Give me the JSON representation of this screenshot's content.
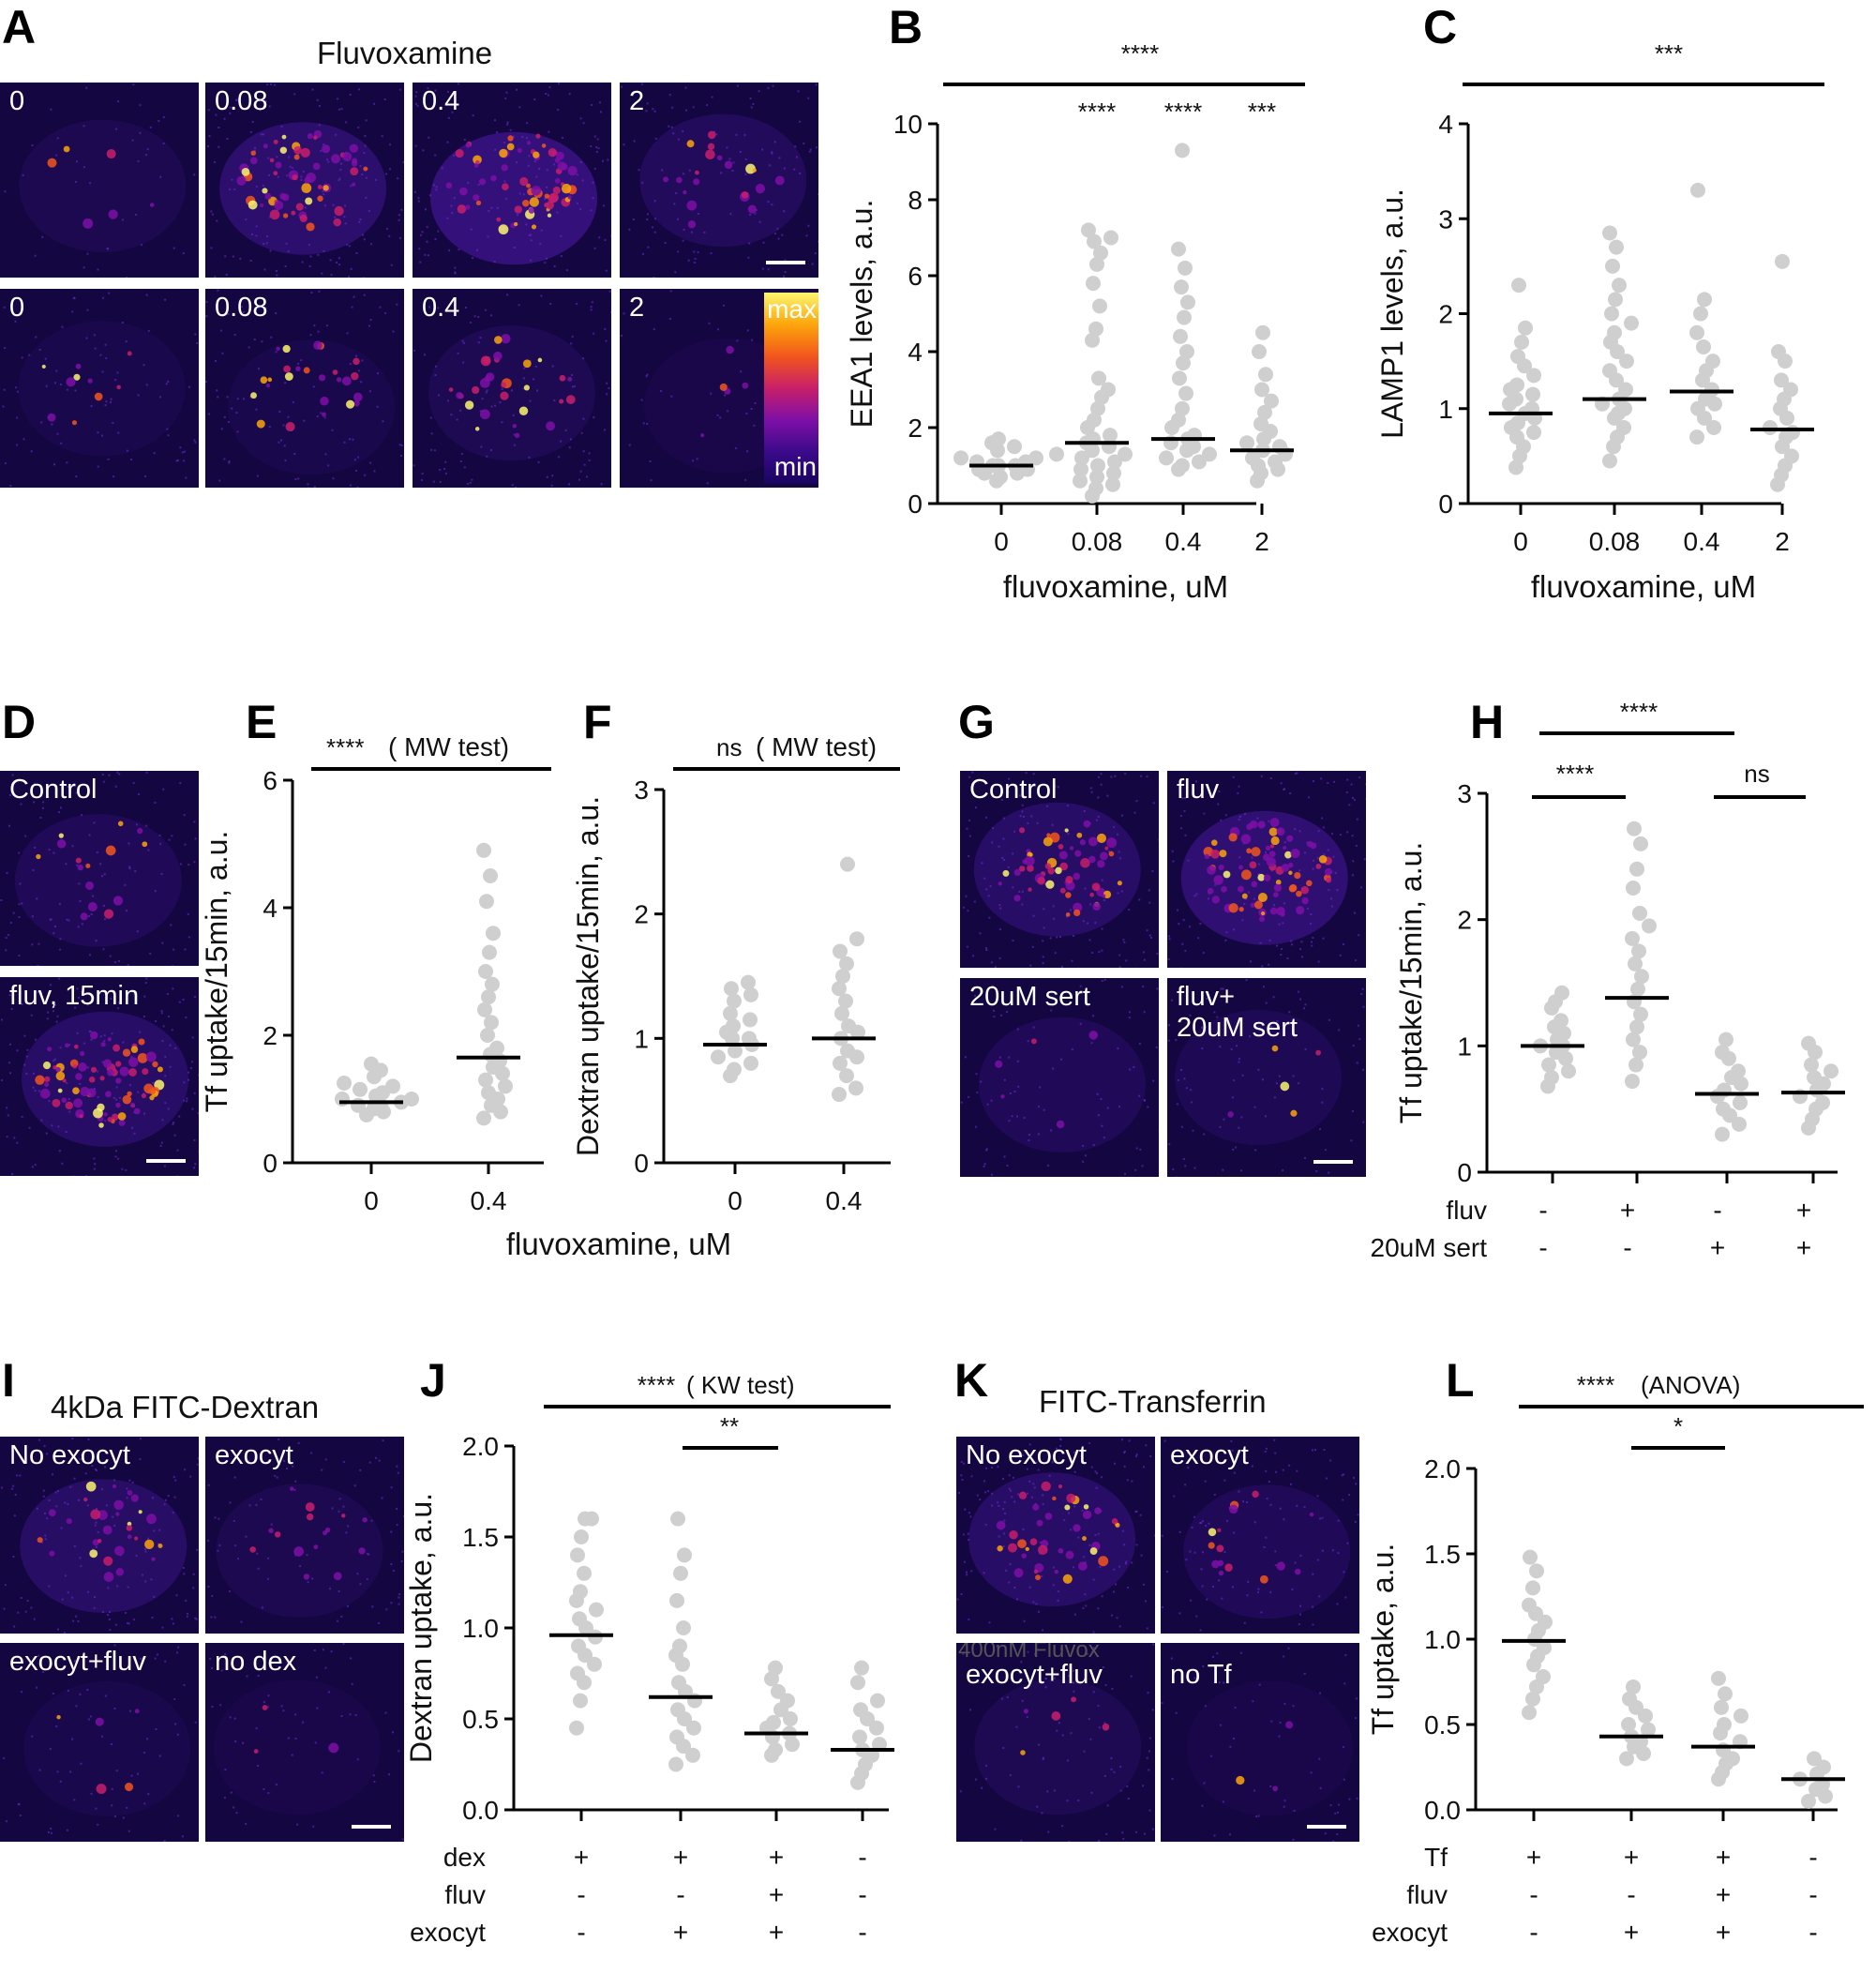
{
  "panels": {
    "A": {
      "letter": "A",
      "title": "Fluvoxamine",
      "row1_labels": [
        "0",
        "0.08",
        "0.4",
        "2"
      ],
      "row2_labels": [
        "0",
        "0.08",
        "0.4",
        "2"
      ],
      "lut_max": "max",
      "lut_min": "min"
    },
    "D": {
      "letter": "D",
      "labels": [
        "Control",
        "fluv, 15min"
      ]
    },
    "G": {
      "letter": "G",
      "labels": [
        "Control",
        "fluv",
        "20uM sert",
        "fluv+\n20uM sert"
      ]
    },
    "I": {
      "letter": "I",
      "title": "4kDa FITC-Dextran",
      "labels": [
        "No exocyt",
        "exocyt",
        "exocyt+fluv",
        "no dex"
      ]
    },
    "K": {
      "letter": "K",
      "title": "FITC-Transferrin",
      "labels": [
        "No exocyt",
        "exocyt",
        "exocyt+fluv",
        "no Tf"
      ],
      "overlay_text": "400nM Fluvox"
    }
  },
  "colors": {
    "dots": "#cfcfcf",
    "median": "#000000",
    "axis": "#000000",
    "lut": [
      "#0b0018",
      "#3a0a8a",
      "#7e0fa6",
      "#c81f6a",
      "#f2561d",
      "#fca50a",
      "#fcf66f"
    ]
  },
  "chart_data": [
    {
      "id": "B",
      "type": "scatter",
      "letter": "B",
      "ylabel": "EEA1 levels, a.u.",
      "xlabel": "fluvoxamine, uM",
      "categories": [
        "0",
        "0.08",
        "0.4",
        "2"
      ],
      "ylim": [
        0,
        10
      ],
      "yticks": [
        "0",
        "2",
        "4",
        "6",
        "8",
        "10"
      ],
      "medians": [
        1.0,
        1.6,
        1.7,
        1.4
      ],
      "points": [
        [
          0.6,
          0.7,
          0.8,
          0.8,
          0.9,
          0.9,
          1.0,
          1.0,
          1.0,
          1.1,
          1.1,
          1.2,
          1.2,
          1.3,
          1.4,
          1.5,
          1.6,
          1.7
        ],
        [
          0.2,
          0.4,
          0.5,
          0.6,
          0.7,
          0.8,
          0.9,
          1.0,
          1.1,
          1.2,
          1.3,
          1.4,
          1.5,
          1.6,
          1.7,
          1.8,
          2.0,
          2.2,
          2.5,
          2.8,
          3.0,
          3.3,
          4.3,
          4.6,
          5.2,
          5.8,
          6.3,
          6.6,
          6.9,
          7.0,
          7.2
        ],
        [
          0.9,
          1.0,
          1.1,
          1.2,
          1.3,
          1.4,
          1.5,
          1.6,
          1.7,
          1.8,
          2.0,
          2.2,
          2.5,
          2.9,
          3.3,
          3.7,
          4.0,
          4.4,
          4.9,
          5.3,
          5.7,
          6.2,
          6.7,
          9.3
        ],
        [
          0.6,
          0.8,
          0.9,
          1.0,
          1.1,
          1.2,
          1.3,
          1.4,
          1.5,
          1.6,
          1.7,
          1.9,
          2.1,
          2.4,
          2.7,
          3.0,
          3.4,
          4.0,
          4.5
        ]
      ],
      "annotations": {
        "overall": "****",
        "groups": [
          "",
          "****",
          "****",
          "***"
        ]
      }
    },
    {
      "id": "C",
      "type": "scatter",
      "letter": "C",
      "ylabel": "LAMP1 levels, a.u.",
      "xlabel": "fluvoxamine, uM",
      "categories": [
        "0",
        "0.08",
        "0.4",
        "2"
      ],
      "ylim": [
        0,
        4
      ],
      "yticks": [
        "0",
        "1",
        "2",
        "3",
        "4"
      ],
      "medians": [
        0.95,
        1.1,
        1.18,
        0.78
      ],
      "points": [
        [
          0.38,
          0.5,
          0.6,
          0.7,
          0.75,
          0.8,
          0.85,
          0.9,
          0.95,
          1.0,
          1.05,
          1.1,
          1.15,
          1.2,
          1.25,
          1.35,
          1.45,
          1.55,
          1.7,
          1.85,
          2.3
        ],
        [
          0.45,
          0.6,
          0.7,
          0.8,
          0.9,
          0.95,
          1.0,
          1.05,
          1.1,
          1.2,
          1.3,
          1.4,
          1.5,
          1.6,
          1.7,
          1.8,
          1.9,
          2.0,
          2.15,
          2.3,
          2.5,
          2.7,
          2.85
        ],
        [
          0.7,
          0.8,
          0.9,
          1.0,
          1.05,
          1.1,
          1.2,
          1.3,
          1.4,
          1.5,
          1.65,
          1.8,
          2.0,
          2.15,
          3.3
        ],
        [
          0.2,
          0.3,
          0.4,
          0.5,
          0.6,
          0.7,
          0.75,
          0.8,
          0.9,
          1.0,
          1.1,
          1.2,
          1.3,
          1.5,
          1.6,
          2.55
        ]
      ],
      "annotations": {
        "overall": "***",
        "groups": [
          "",
          "",
          "",
          ""
        ]
      }
    },
    {
      "id": "E",
      "type": "scatter",
      "letter": "E",
      "ylabel": "Tf uptake/15min, a.u.",
      "xlabel": "fluvoxamine, uM",
      "categories": [
        "0",
        "0.4"
      ],
      "ylim": [
        0,
        6
      ],
      "yticks": [
        "0",
        "2",
        "4",
        "6"
      ],
      "medians": [
        0.95,
        1.65
      ],
      "points": [
        [
          0.75,
          0.8,
          0.85,
          0.9,
          0.9,
          0.95,
          1.0,
          1.0,
          1.05,
          1.1,
          1.15,
          1.2,
          1.25,
          1.35,
          1.45,
          1.55
        ],
        [
          0.7,
          0.8,
          0.9,
          1.0,
          1.1,
          1.2,
          1.3,
          1.4,
          1.5,
          1.6,
          1.7,
          1.8,
          2.0,
          2.2,
          2.4,
          2.6,
          2.8,
          3.0,
          3.3,
          3.6,
          4.1,
          4.5,
          4.9
        ]
      ],
      "annotations": {
        "overall": "****",
        "overall_test": "( MW test)"
      }
    },
    {
      "id": "F",
      "type": "scatter",
      "letter": "F",
      "ylabel": "Dextran uptake/15min, a.u.",
      "xlabel": "",
      "categories": [
        "0",
        "0.4"
      ],
      "ylim": [
        0,
        3
      ],
      "yticks": [
        "0",
        "1",
        "2",
        "3"
      ],
      "medians": [
        0.95,
        1.0
      ],
      "points": [
        [
          0.7,
          0.75,
          0.8,
          0.85,
          0.9,
          0.95,
          1.0,
          1.0,
          1.05,
          1.1,
          1.15,
          1.2,
          1.3,
          1.35,
          1.4,
          1.45
        ],
        [
          0.55,
          0.6,
          0.7,
          0.8,
          0.85,
          0.9,
          1.0,
          1.05,
          1.1,
          1.2,
          1.3,
          1.4,
          1.5,
          1.6,
          1.7,
          1.8,
          2.4
        ]
      ],
      "annotations": {
        "overall": "ns",
        "overall_test": "( MW test)"
      }
    },
    {
      "id": "H",
      "type": "scatter",
      "letter": "H",
      "ylabel": "Tf uptake/15min, a.u.",
      "xlabel": "",
      "categories": [
        "1",
        "2",
        "3",
        "4"
      ],
      "ylim": [
        0,
        3
      ],
      "yticks": [
        "0",
        "1",
        "2",
        "3"
      ],
      "medians": [
        1.0,
        1.38,
        0.62,
        0.63
      ],
      "points": [
        [
          0.68,
          0.75,
          0.8,
          0.85,
          0.9,
          0.95,
          1.0,
          1.0,
          1.05,
          1.1,
          1.15,
          1.2,
          1.3,
          1.35,
          1.42
        ],
        [
          0.72,
          0.85,
          0.95,
          1.05,
          1.15,
          1.25,
          1.35,
          1.45,
          1.55,
          1.65,
          1.75,
          1.85,
          1.95,
          2.05,
          2.25,
          2.4,
          2.6,
          2.72
        ],
        [
          0.3,
          0.38,
          0.45,
          0.5,
          0.55,
          0.6,
          0.65,
          0.7,
          0.75,
          0.8,
          0.9,
          0.95,
          1.05
        ],
        [
          0.35,
          0.42,
          0.5,
          0.55,
          0.6,
          0.65,
          0.7,
          0.75,
          0.8,
          0.85,
          0.95,
          1.02
        ]
      ],
      "conditions": [
        {
          "name": "fluv",
          "values": [
            "-",
            "+",
            "-",
            "+"
          ]
        },
        {
          "name": "20uM sert",
          "values": [
            "-",
            "-",
            "+",
            "+"
          ]
        }
      ],
      "annotations": {
        "overall": "****",
        "left": "****",
        "right": "ns"
      }
    },
    {
      "id": "J",
      "type": "scatter",
      "letter": "J",
      "ylabel": "Dextran uptake, a.u.",
      "xlabel": "",
      "categories": [
        "1",
        "2",
        "3",
        "4"
      ],
      "ylim": [
        0,
        2.0
      ],
      "yticks": [
        "0.0",
        "0.5",
        "1.0",
        "1.5",
        "2.0"
      ],
      "medians": [
        0.96,
        0.62,
        0.42,
        0.33
      ],
      "points": [
        [
          0.45,
          0.6,
          0.7,
          0.75,
          0.8,
          0.85,
          0.9,
          0.95,
          1.0,
          1.05,
          1.1,
          1.15,
          1.2,
          1.3,
          1.4,
          1.5,
          1.6,
          1.6
        ],
        [
          0.25,
          0.3,
          0.35,
          0.4,
          0.45,
          0.5,
          0.55,
          0.6,
          0.65,
          0.7,
          0.8,
          0.85,
          0.9,
          1.0,
          1.15,
          1.3,
          1.4,
          1.6
        ],
        [
          0.3,
          0.33,
          0.36,
          0.4,
          0.42,
          0.45,
          0.48,
          0.5,
          0.55,
          0.6,
          0.65,
          0.72,
          0.78
        ],
        [
          0.15,
          0.2,
          0.25,
          0.3,
          0.33,
          0.36,
          0.4,
          0.45,
          0.5,
          0.55,
          0.6,
          0.7,
          0.78
        ]
      ],
      "conditions": [
        {
          "name": "dex",
          "values": [
            "+",
            "+",
            "+",
            "-"
          ]
        },
        {
          "name": "fluv",
          "values": [
            "-",
            "-",
            "+",
            "-"
          ]
        },
        {
          "name": "exocyt",
          "values": [
            "-",
            "+",
            "+",
            "-"
          ]
        }
      ],
      "annotations": {
        "overall": "****",
        "overall_test": "( KW test)",
        "pair": "**"
      }
    },
    {
      "id": "L",
      "type": "scatter",
      "letter": "L",
      "ylabel": "Tf uptake, a.u.",
      "xlabel": "",
      "categories": [
        "1",
        "2",
        "3",
        "4"
      ],
      "ylim": [
        0,
        2.0
      ],
      "yticks": [
        "0.0",
        "0.5",
        "1.0",
        "1.5",
        "2.0"
      ],
      "medians": [
        0.99,
        0.43,
        0.37,
        0.18
      ],
      "points": [
        [
          0.57,
          0.65,
          0.72,
          0.78,
          0.85,
          0.9,
          0.95,
          1.0,
          1.05,
          1.1,
          1.15,
          1.2,
          1.3,
          1.4,
          1.48
        ],
        [
          0.3,
          0.33,
          0.37,
          0.4,
          0.43,
          0.47,
          0.5,
          0.55,
          0.6,
          0.65,
          0.72
        ],
        [
          0.18,
          0.22,
          0.27,
          0.3,
          0.35,
          0.4,
          0.45,
          0.5,
          0.55,
          0.6,
          0.68,
          0.77
        ],
        [
          0.05,
          0.08,
          0.12,
          0.15,
          0.18,
          0.21,
          0.25,
          0.3
        ]
      ],
      "conditions": [
        {
          "name": "Tf",
          "values": [
            "+",
            "+",
            "+",
            "-"
          ]
        },
        {
          "name": "fluv",
          "values": [
            "-",
            "-",
            "+",
            "-"
          ]
        },
        {
          "name": "exocyt",
          "values": [
            "-",
            "+",
            "+",
            "-"
          ]
        }
      ],
      "annotations": {
        "overall": "****",
        "overall_test": "(ANOVA)",
        "pair": "*"
      }
    }
  ]
}
